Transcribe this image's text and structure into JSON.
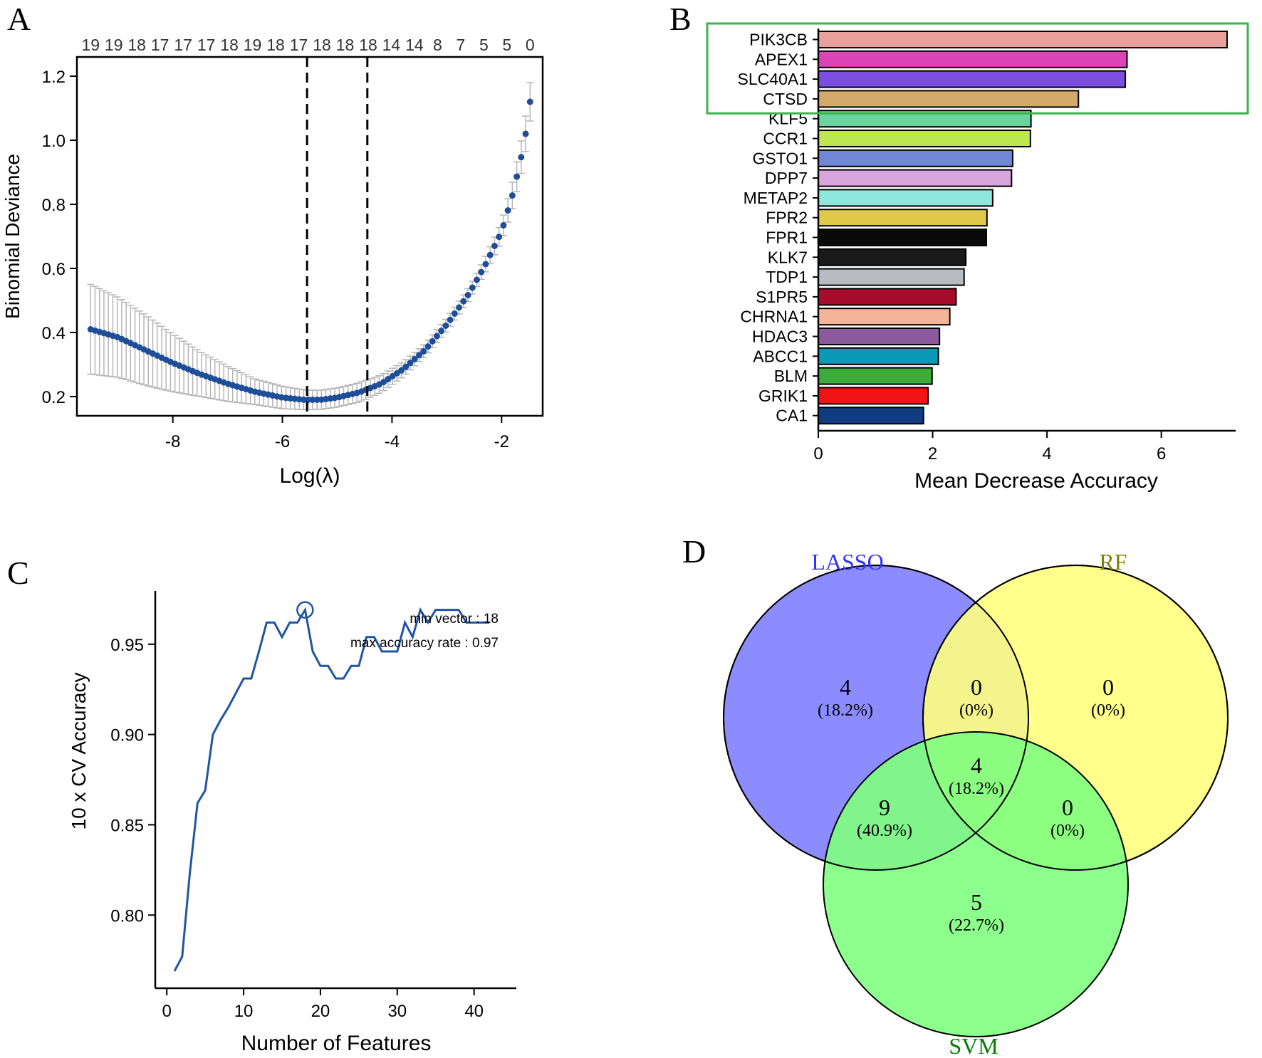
{
  "colors": {
    "navy": "#1f4e99",
    "errorbar": "#b5b5b5",
    "cv_line": "#2155a3",
    "highlight": "#3cb44b",
    "lasso_fill": "#8080ff",
    "rf_fill": "#ffff80",
    "svm_fill": "#80ff80",
    "lasso_label": "#3333ff",
    "rf_label": "#808000",
    "svm_label": "#008000"
  },
  "chart_data": [
    {
      "panel": "A",
      "type": "scatter",
      "xlabel": "Log(λ)",
      "ylabel": "Binomial Deviance",
      "xlim": [
        -9.75,
        -1.25
      ],
      "ylim": [
        0.14,
        1.26
      ],
      "xticks": [
        -8,
        -6,
        -4,
        -2
      ],
      "xtick_labels": [
        "-8",
        "-6",
        "-4",
        "-2"
      ],
      "yticks": [
        0.2,
        0.4,
        0.6,
        0.8,
        1.0,
        1.2
      ],
      "ytick_labels": [
        "0.2",
        "0.4",
        "0.6",
        "0.8",
        "1.0",
        "1.2"
      ],
      "top_axis_labels": [
        "19",
        "19",
        "18",
        "17",
        "17",
        "17",
        "18",
        "19",
        "18",
        "17",
        "18",
        "18",
        "18",
        "14",
        "14",
        "8",
        "7",
        "5",
        "5",
        "0"
      ],
      "vlines": [
        -5.55,
        -4.45
      ],
      "series": {
        "x_start": -9.5,
        "x_end": -1.48,
        "n_points": 100,
        "curve_knots": [
          [
            -9.5,
            0.41
          ],
          [
            -9.0,
            0.385
          ],
          [
            -8.5,
            0.345
          ],
          [
            -8.0,
            0.305
          ],
          [
            -7.5,
            0.27
          ],
          [
            -7.0,
            0.24
          ],
          [
            -6.5,
            0.215
          ],
          [
            -6.0,
            0.197
          ],
          [
            -5.6,
            0.19
          ],
          [
            -5.3,
            0.19
          ],
          [
            -5.0,
            0.197
          ],
          [
            -4.6,
            0.213
          ],
          [
            -4.2,
            0.24
          ],
          [
            -3.8,
            0.285
          ],
          [
            -3.4,
            0.345
          ],
          [
            -3.0,
            0.425
          ],
          [
            -2.6,
            0.52
          ],
          [
            -2.3,
            0.61
          ],
          [
            -2.0,
            0.715
          ],
          [
            -1.8,
            0.83
          ],
          [
            -1.65,
            0.94
          ],
          [
            -1.55,
            1.03
          ],
          [
            -1.48,
            1.12
          ]
        ],
        "err_knots": [
          [
            -9.5,
            0.14
          ],
          [
            -8.5,
            0.11
          ],
          [
            -7.5,
            0.07
          ],
          [
            -6.5,
            0.04
          ],
          [
            -5.5,
            0.03
          ],
          [
            -4.5,
            0.03
          ],
          [
            -3.5,
            0.02
          ],
          [
            -2.5,
            0.02
          ],
          [
            -2.0,
            0.03
          ],
          [
            -1.48,
            0.06
          ]
        ]
      }
    },
    {
      "panel": "B",
      "type": "bar",
      "orientation": "horizontal",
      "xlabel": "Mean Decrease Accuracy",
      "xlim": [
        0,
        7.3
      ],
      "xticks": [
        0,
        2,
        4,
        6
      ],
      "xtick_labels": [
        "0",
        "2",
        "4",
        "6"
      ],
      "categories": [
        "PIK3CB",
        "APEX1",
        "SLC40A1",
        "CTSD",
        "KLF5",
        "CCR1",
        "GSTO1",
        "DPP7",
        "METAP2",
        "FPR2",
        "FPR1",
        "KLK7",
        "TDP1",
        "S1PR5",
        "CHRNA1",
        "HDAC3",
        "ABCC1",
        "BLM",
        "GRIK1",
        "CA1"
      ],
      "values": [
        7.15,
        5.4,
        5.37,
        4.55,
        3.72,
        3.71,
        3.4,
        3.38,
        3.05,
        2.95,
        2.94,
        2.58,
        2.55,
        2.41,
        2.3,
        2.12,
        2.1,
        1.99,
        1.92,
        1.84
      ],
      "bar_colors": [
        "#e8a09c",
        "#dd44b8",
        "#7b4ee0",
        "#d4aa6a",
        "#6ad3a0",
        "#bde650",
        "#7086d6",
        "#d8a6dc",
        "#8ee6dc",
        "#e0c848",
        "#0a0a0a",
        "#1a1a1a",
        "#b8bcc0",
        "#a80c2c",
        "#f6b498",
        "#8c5a9c",
        "#0a9ab8",
        "#3cac3c",
        "#f01414",
        "#123c80"
      ],
      "highlight_top_n": 4
    },
    {
      "panel": "C",
      "type": "line",
      "xlabel": "Number of Features",
      "ylabel": "10 x CV Accuracy",
      "xlim": [
        -1.5,
        45.5
      ],
      "ylim": [
        0.7595,
        0.9795
      ],
      "xticks": [
        0,
        10,
        20,
        30,
        40
      ],
      "xtick_labels": [
        "0",
        "10",
        "20",
        "30",
        "40"
      ],
      "yticks": [
        0.8,
        0.85,
        0.9,
        0.95
      ],
      "ytick_labels": [
        "0.80",
        "0.85",
        "0.90",
        "0.95"
      ],
      "x": [
        1,
        2,
        3,
        4,
        5,
        6,
        7,
        8,
        9,
        10,
        11,
        12,
        13,
        14,
        15,
        16,
        17,
        18,
        19,
        20,
        21,
        22,
        23,
        24,
        25,
        26,
        27,
        28,
        29,
        30,
        31,
        32,
        33,
        34,
        35,
        36,
        37,
        38,
        39,
        40,
        41,
        42
      ],
      "y": [
        0.769,
        0.777,
        0.823,
        0.862,
        0.869,
        0.9,
        0.908,
        0.915,
        0.923,
        0.931,
        0.931,
        0.946,
        0.962,
        0.962,
        0.954,
        0.962,
        0.962,
        0.969,
        0.946,
        0.938,
        0.938,
        0.931,
        0.931,
        0.938,
        0.938,
        0.954,
        0.954,
        0.946,
        0.946,
        0.946,
        0.962,
        0.954,
        0.969,
        0.962,
        0.969,
        0.969,
        0.969,
        0.969,
        0.962,
        0.962,
        0.962,
        0.962
      ],
      "highlight_point": [
        18,
        0.969
      ],
      "annotations": [
        "min vector : 18",
        "max accuracy rate : 0.97"
      ]
    },
    {
      "panel": "D",
      "type": "venn",
      "sets": [
        "LASSO",
        "RF",
        "SVM"
      ],
      "regions": [
        {
          "key": "lasso_only",
          "count": "4",
          "pct": "(18.2%)"
        },
        {
          "key": "lasso_rf",
          "count": "0",
          "pct": "(0%)"
        },
        {
          "key": "rf_only",
          "count": "0",
          "pct": "(0%)"
        },
        {
          "key": "all_three",
          "count": "4",
          "pct": "(18.2%)"
        },
        {
          "key": "lasso_svm",
          "count": "9",
          "pct": "(40.9%)"
        },
        {
          "key": "rf_svm",
          "count": "0",
          "pct": "(0%)"
        },
        {
          "key": "svm_only",
          "count": "5",
          "pct": "(22.7%)"
        }
      ]
    }
  ]
}
